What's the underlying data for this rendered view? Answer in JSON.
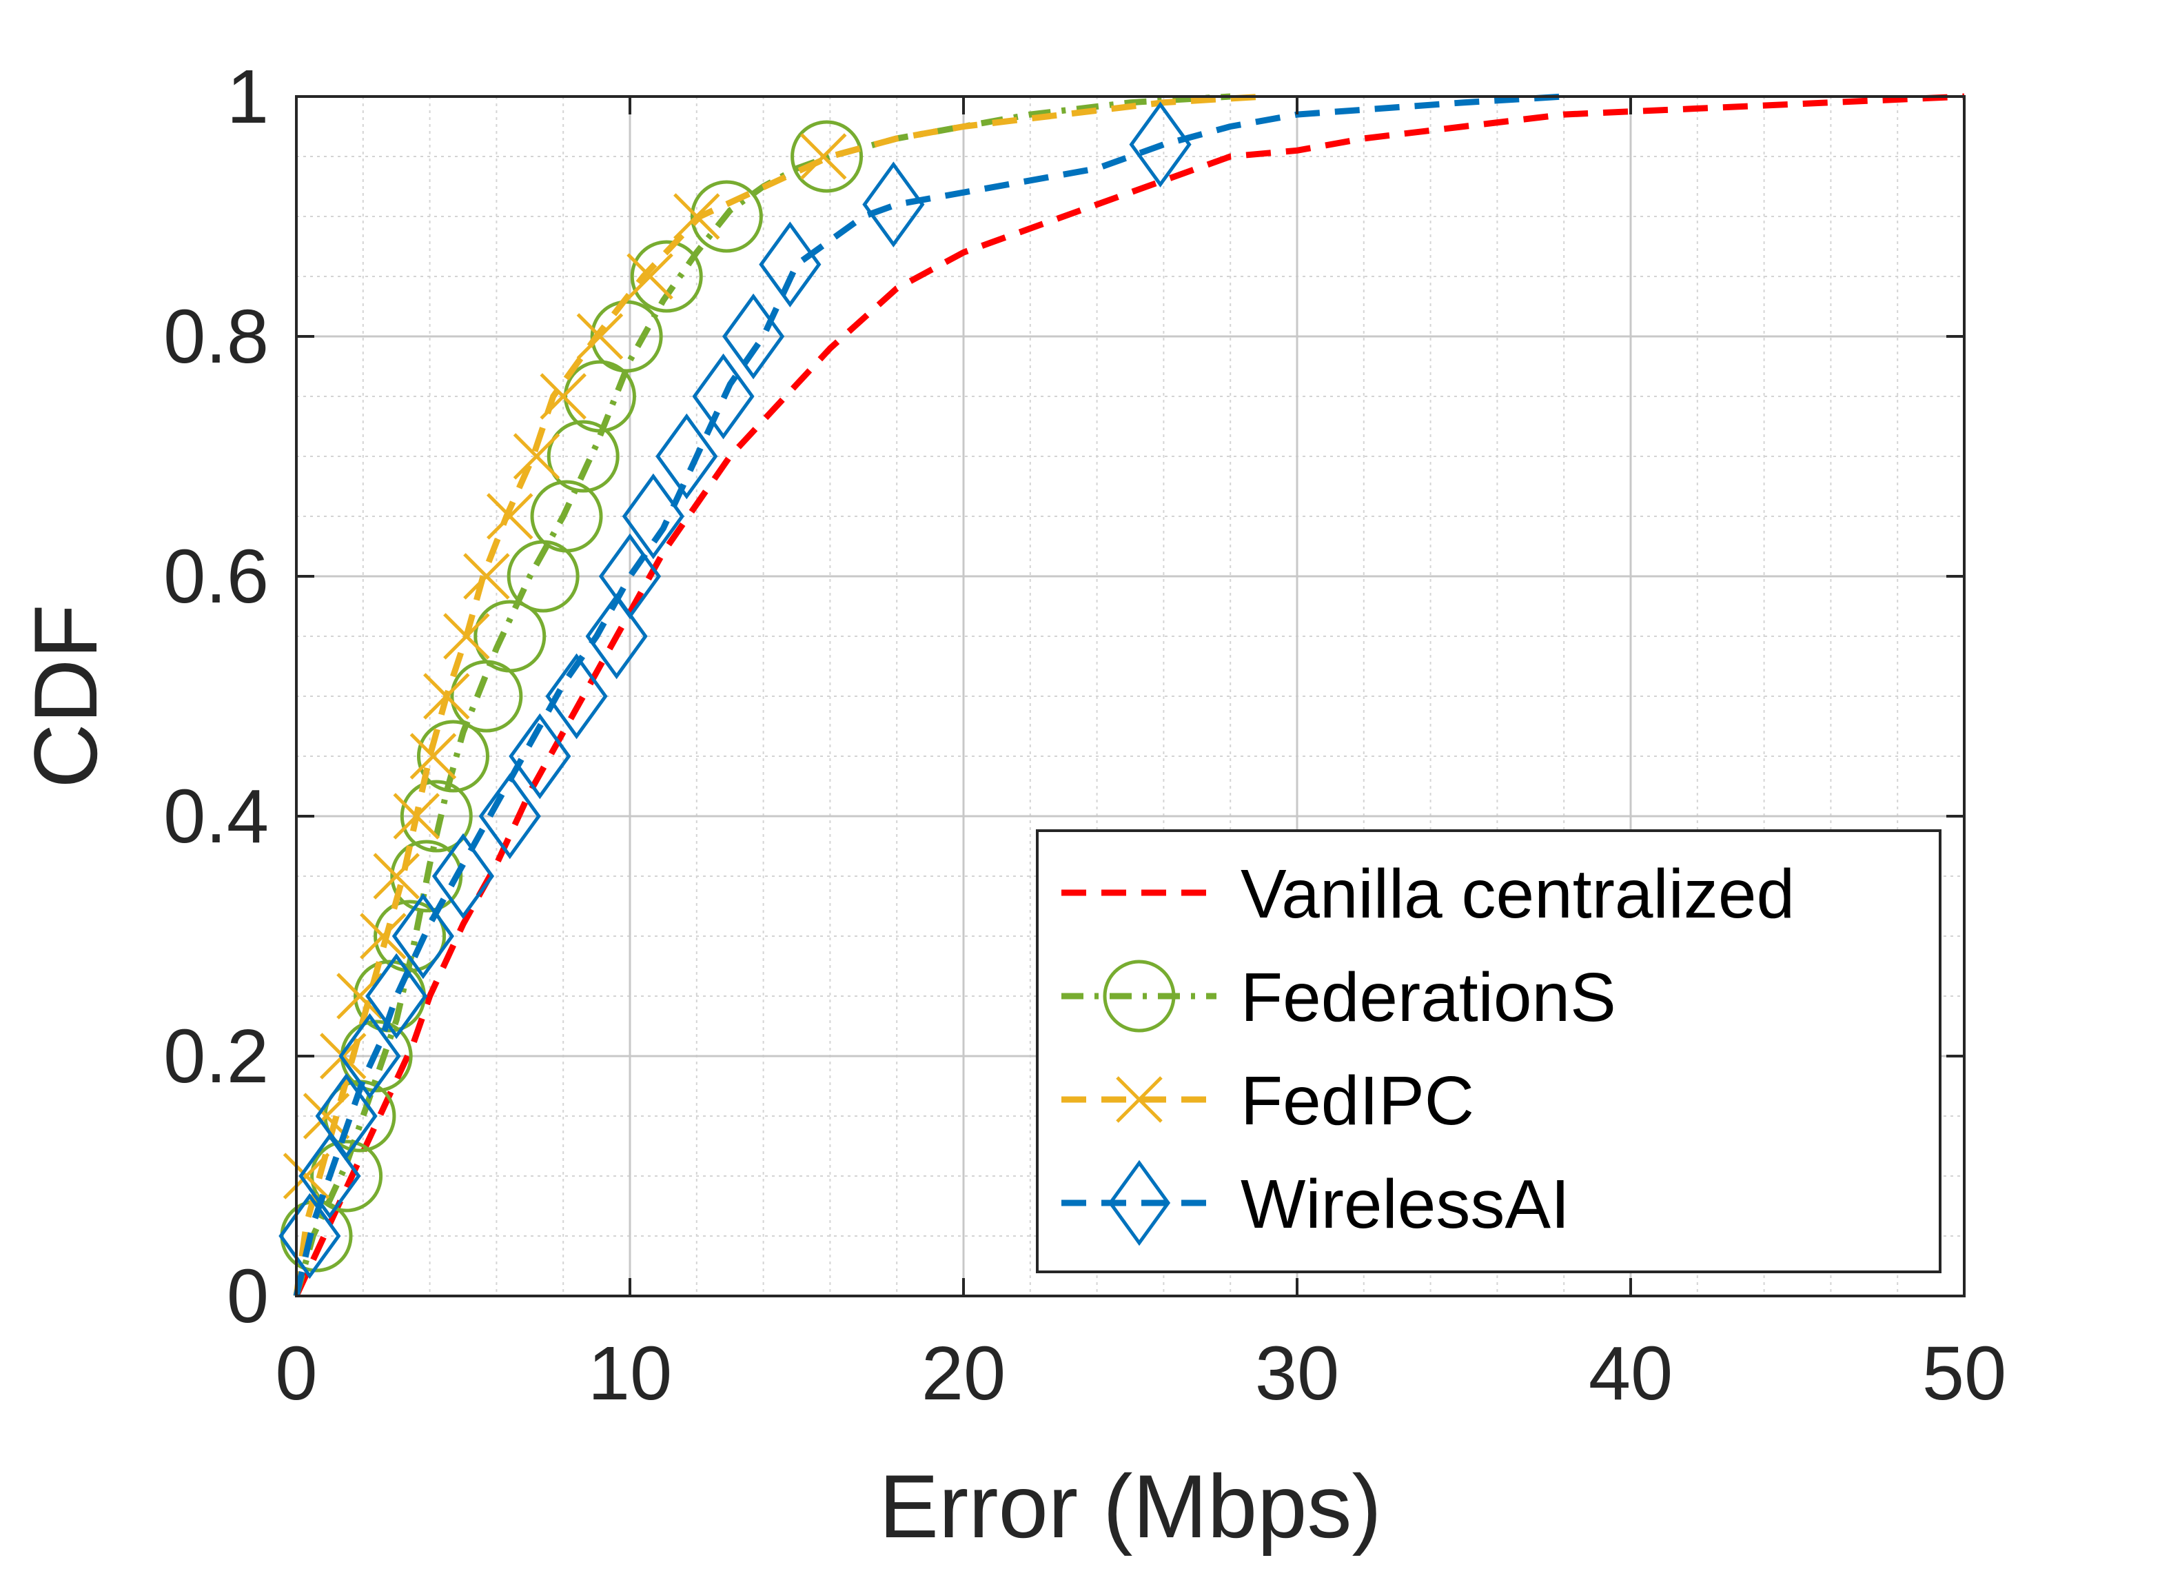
{
  "chart_data": {
    "type": "line",
    "title": "",
    "xlabel": "Error (Mbps)",
    "ylabel": "CDF",
    "xlim": [
      0,
      50
    ],
    "ylim": [
      0,
      1
    ],
    "xticks": [
      0,
      10,
      20,
      30,
      40,
      50
    ],
    "xtick_labels": [
      "0",
      "10",
      "20",
      "30",
      "40",
      "50"
    ],
    "yticks": [
      0,
      0.2,
      0.4,
      0.6,
      0.8,
      1
    ],
    "ytick_labels": [
      "0",
      "0.2",
      "0.4",
      "0.6",
      "0.8",
      "1"
    ],
    "grid": true,
    "minor_grid": true,
    "legend_position": "bottom-right",
    "series": [
      {
        "name": "Vanilla centralized",
        "color": "#ff0000",
        "line_style": "dashed",
        "marker": "none",
        "points": [
          [
            0,
            0
          ],
          [
            0.5,
            0.03
          ],
          [
            1,
            0.06
          ],
          [
            1.5,
            0.09
          ],
          [
            2,
            0.12
          ],
          [
            2.5,
            0.15
          ],
          [
            3,
            0.18
          ],
          [
            3.5,
            0.21
          ],
          [
            4,
            0.25
          ],
          [
            4.5,
            0.28
          ],
          [
            5,
            0.31
          ],
          [
            6,
            0.36
          ],
          [
            7,
            0.42
          ],
          [
            8,
            0.47
          ],
          [
            9,
            0.52
          ],
          [
            10,
            0.57
          ],
          [
            11,
            0.62
          ],
          [
            12,
            0.66
          ],
          [
            13,
            0.7
          ],
          [
            14,
            0.73
          ],
          [
            15,
            0.76
          ],
          [
            16,
            0.79
          ],
          [
            18,
            0.84
          ],
          [
            20,
            0.87
          ],
          [
            22,
            0.89
          ],
          [
            24,
            0.91
          ],
          [
            26,
            0.93
          ],
          [
            28,
            0.95
          ],
          [
            30,
            0.955
          ],
          [
            32,
            0.965
          ],
          [
            35,
            0.975
          ],
          [
            38,
            0.985
          ],
          [
            42,
            0.99
          ],
          [
            46,
            0.995
          ],
          [
            50,
            1.0
          ]
        ]
      },
      {
        "name": "FederationS",
        "color": "#77ac30",
        "line_style": "dash-dot",
        "marker": "circle",
        "points": [
          [
            0,
            0
          ],
          [
            0.5,
            0.05
          ],
          [
            1,
            0.08
          ],
          [
            1.5,
            0.11
          ],
          [
            2,
            0.15
          ],
          [
            2.5,
            0.19
          ],
          [
            3,
            0.23
          ],
          [
            3.5,
            0.29
          ],
          [
            4,
            0.36
          ],
          [
            4.5,
            0.42
          ],
          [
            5,
            0.47
          ],
          [
            6,
            0.54
          ],
          [
            7,
            0.6
          ],
          [
            8,
            0.65
          ],
          [
            9,
            0.71
          ],
          [
            10,
            0.78
          ],
          [
            11,
            0.83
          ],
          [
            12,
            0.87
          ],
          [
            13,
            0.905
          ],
          [
            14,
            0.925
          ],
          [
            15,
            0.94
          ],
          [
            16,
            0.95
          ],
          [
            18,
            0.965
          ],
          [
            20,
            0.975
          ],
          [
            22,
            0.985
          ],
          [
            25,
            0.995
          ],
          [
            28,
            1.0
          ]
        ],
        "marker_points": [
          [
            0.6,
            0.05
          ],
          [
            1.5,
            0.1
          ],
          [
            1.9,
            0.15
          ],
          [
            2.4,
            0.2
          ],
          [
            2.8,
            0.25
          ],
          [
            3.4,
            0.3
          ],
          [
            3.9,
            0.35
          ],
          [
            4.2,
            0.4
          ],
          [
            4.7,
            0.45
          ],
          [
            5.7,
            0.5
          ],
          [
            6.4,
            0.55
          ],
          [
            7.4,
            0.6
          ],
          [
            8.1,
            0.65
          ],
          [
            8.6,
            0.7
          ],
          [
            9.1,
            0.75
          ],
          [
            9.9,
            0.8
          ],
          [
            11.1,
            0.85
          ],
          [
            12.9,
            0.9
          ],
          [
            15.9,
            0.95
          ]
        ]
      },
      {
        "name": "FedIPC",
        "color": "#edb120",
        "line_style": "dashed",
        "marker": "x",
        "points": [
          [
            0,
            0
          ],
          [
            0.3,
            0.06
          ],
          [
            0.7,
            0.1
          ],
          [
            1.2,
            0.15
          ],
          [
            1.7,
            0.2
          ],
          [
            2.2,
            0.25
          ],
          [
            2.7,
            0.3
          ],
          [
            3.2,
            0.35
          ],
          [
            3.6,
            0.4
          ],
          [
            4.0,
            0.45
          ],
          [
            4.5,
            0.5
          ],
          [
            5.1,
            0.55
          ],
          [
            5.6,
            0.6
          ],
          [
            6.3,
            0.65
          ],
          [
            7.1,
            0.7
          ],
          [
            7.7,
            0.75
          ],
          [
            9.0,
            0.8
          ],
          [
            10.4,
            0.85
          ],
          [
            12.1,
            0.9
          ],
          [
            16.0,
            0.95
          ],
          [
            18,
            0.965
          ],
          [
            20,
            0.975
          ],
          [
            23,
            0.985
          ],
          [
            26,
            0.995
          ],
          [
            29,
            1.0
          ]
        ],
        "marker_points": [
          [
            0.3,
            0.1
          ],
          [
            0.9,
            0.15
          ],
          [
            1.4,
            0.2
          ],
          [
            1.9,
            0.25
          ],
          [
            2.6,
            0.3
          ],
          [
            3.0,
            0.35
          ],
          [
            3.6,
            0.4
          ],
          [
            4.1,
            0.45
          ],
          [
            4.5,
            0.5
          ],
          [
            5.1,
            0.55
          ],
          [
            5.7,
            0.6
          ],
          [
            6.4,
            0.65
          ],
          [
            7.2,
            0.7
          ],
          [
            8.0,
            0.75
          ],
          [
            9.1,
            0.8
          ],
          [
            10.6,
            0.85
          ],
          [
            12.0,
            0.9
          ],
          [
            15.8,
            0.95
          ]
        ]
      },
      {
        "name": "WirelessAI",
        "color": "#0072bd",
        "line_style": "dashed",
        "marker": "diamond",
        "points": [
          [
            0,
            0
          ],
          [
            0.5,
            0.06
          ],
          [
            1,
            0.1
          ],
          [
            1.5,
            0.14
          ],
          [
            2,
            0.18
          ],
          [
            2.5,
            0.21
          ],
          [
            3,
            0.25
          ],
          [
            3.5,
            0.28
          ],
          [
            4,
            0.31
          ],
          [
            5,
            0.36
          ],
          [
            6,
            0.41
          ],
          [
            7,
            0.46
          ],
          [
            8,
            0.51
          ],
          [
            9,
            0.55
          ],
          [
            10,
            0.6
          ],
          [
            11,
            0.64
          ],
          [
            12,
            0.7
          ],
          [
            13,
            0.76
          ],
          [
            14,
            0.8
          ],
          [
            15,
            0.86
          ],
          [
            16,
            0.88
          ],
          [
            17,
            0.9
          ],
          [
            18,
            0.91
          ],
          [
            20,
            0.92
          ],
          [
            22,
            0.93
          ],
          [
            24,
            0.94
          ],
          [
            26,
            0.96
          ],
          [
            28,
            0.975
          ],
          [
            30,
            0.985
          ],
          [
            35,
            0.995
          ],
          [
            38,
            1.0
          ]
        ],
        "marker_points": [
          [
            0.4,
            0.05
          ],
          [
            1.0,
            0.1
          ],
          [
            1.5,
            0.15
          ],
          [
            2.2,
            0.2
          ],
          [
            3.0,
            0.25
          ],
          [
            3.8,
            0.3
          ],
          [
            5.0,
            0.35
          ],
          [
            6.4,
            0.4
          ],
          [
            7.3,
            0.45
          ],
          [
            8.4,
            0.5
          ],
          [
            9.6,
            0.55
          ],
          [
            10.0,
            0.6
          ],
          [
            10.7,
            0.65
          ],
          [
            11.7,
            0.7
          ],
          [
            12.8,
            0.75
          ],
          [
            13.7,
            0.8
          ],
          [
            14.8,
            0.86
          ],
          [
            17.9,
            0.91
          ],
          [
            25.9,
            0.96
          ]
        ]
      }
    ]
  }
}
